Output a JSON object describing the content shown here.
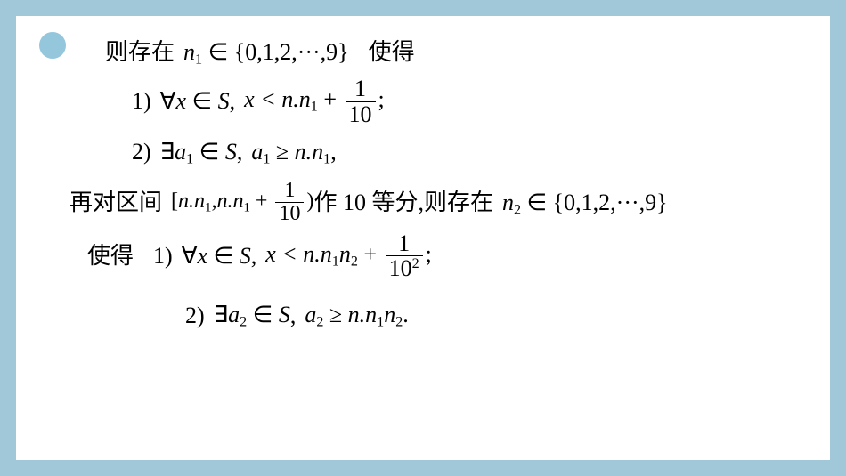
{
  "bullet": {
    "color": "#94c6dc"
  },
  "line1": {
    "t1": "则存在",
    "m1": "n",
    "m1sub": "1",
    "m2": " ∈ {0,1,2,···,9}",
    "t2": "使得"
  },
  "line2": {
    "label": "1)",
    "m1": "∀x ∈ S",
    "comma1": ",",
    "m2": "x < n.n",
    "m2sub": "1",
    "plus": " + ",
    "frac_num": "1",
    "frac_den": "10",
    "semi": ";"
  },
  "line3": {
    "label": "2)",
    "m1": "∃a",
    "m1sub": "1",
    "m2": " ∈ S",
    "comma1": ",",
    "m3": "a",
    "m3sub": "1",
    "geq": " ≥ ",
    "m4": "n.n",
    "m4sub": "1",
    "comma2": ","
  },
  "line4": {
    "t1": "再对区间",
    "lb": "[",
    "m1": "n.n",
    "m1sub": "1",
    "comma": ",",
    "m2": "n.n",
    "m2sub": "1",
    "plus": " + ",
    "frac_num": "1",
    "frac_den": "10",
    "rb": ")",
    "t2": "作 10 等分 ",
    "t3": ",则存在",
    "m3": "n",
    "m3sub": "2",
    "m4": " ∈ {0,1,2,···,9}"
  },
  "line5": {
    "t1": "使得",
    "label": "1)",
    "m1": "∀x ∈ S",
    "comma1": ",",
    "m2": "x < n.n",
    "m2sub1": "1",
    "m2b": "n",
    "m2sub2": "2",
    "plus": " + ",
    "frac_num": "1",
    "frac_den_base": "10",
    "frac_den_sup": "2",
    "semi": ";"
  },
  "line6": {
    "label": "2)",
    "m1": "∃a",
    "m1sub": "2",
    "m2": " ∈ S",
    "comma1": ",",
    "m3": "a",
    "m3sub": "2",
    "geq": " ≥ ",
    "m4": "n.n",
    "m4sub1": "1",
    "m4b": "n",
    "m4sub2": "2",
    "period": "."
  }
}
